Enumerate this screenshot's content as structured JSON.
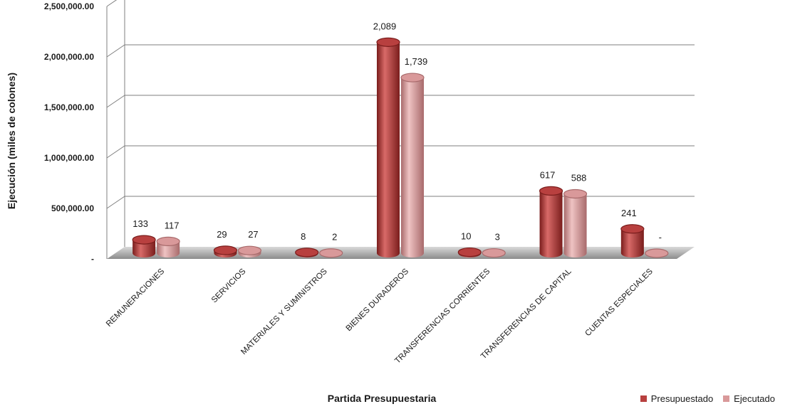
{
  "colors": {
    "presupuestado": "#b8403f",
    "presupuestado_dark": "#7a1d1c",
    "presupuestado_light": "#d86a68",
    "ejecutado": "#d9999a",
    "ejecutado_dark": "#a86a6b",
    "ejecutado_light": "#efc3c3",
    "grid": "#7f7f7f",
    "floor": "#9a9a9a"
  },
  "chart_data": {
    "type": "bar",
    "style": "3d-cylinder",
    "xlabel": "Partida Presupuestaria",
    "ylabel": "Ejecución (miles de colones)",
    "ylim": [
      0,
      2500000
    ],
    "yticks": [
      {
        "value": 0,
        "label": "-"
      },
      {
        "value": 500000,
        "label": "500,000.00"
      },
      {
        "value": 1000000,
        "label": "1,000,000.00"
      },
      {
        "value": 1500000,
        "label": "1,500,000.00"
      },
      {
        "value": 2000000,
        "label": "2,000,000.00"
      },
      {
        "value": 2500000,
        "label": "2,500,000.00"
      }
    ],
    "grid": true,
    "legend_position": "bottom-right",
    "categories": [
      "REMUNERACIONES",
      "SERVICIOS",
      "MATERIALES Y SUMINISTROS",
      "BIENES DURADEROS",
      "TRANSFERENCIAS CORRIENTES",
      "TRANSFERENCIAS DE CAPITAL",
      "CUENTAS ESPECIALES"
    ],
    "series": [
      {
        "name": "Presupuestado",
        "values": [
          133000,
          29000,
          8000,
          2089000,
          10000,
          617000,
          241000
        ],
        "labels": [
          "133",
          "29",
          "8",
          "2,089",
          "10",
          "617",
          "241"
        ]
      },
      {
        "name": "Ejecutado",
        "values": [
          117000,
          27000,
          2000,
          1739000,
          3000,
          588000,
          0
        ],
        "labels": [
          "117",
          "27",
          "2",
          "1,739",
          "3",
          "588",
          "-"
        ]
      }
    ]
  }
}
